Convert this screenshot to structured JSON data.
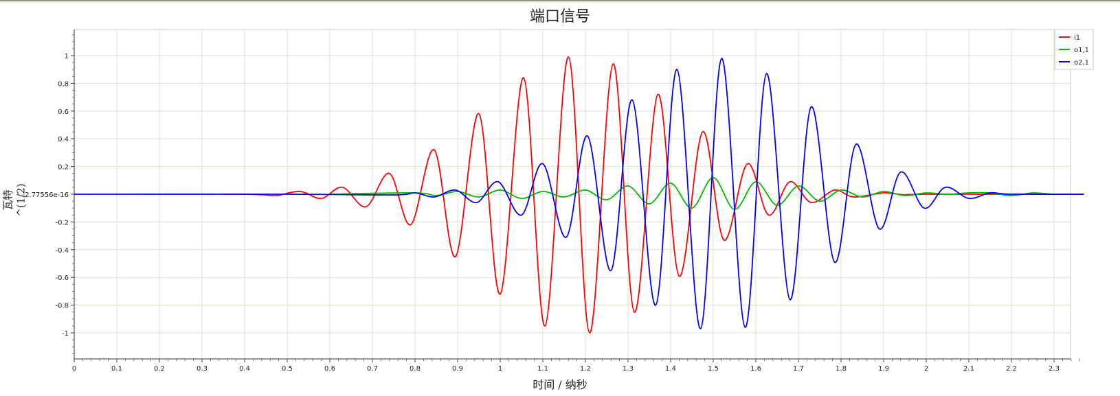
{
  "chart_data": {
    "type": "line",
    "title": "端口信号",
    "xlabel": "时间 / 纳秒",
    "ylabel": "瓦特^(1/2)",
    "xlim": [
      0,
      2.37
    ],
    "ylim": [
      -1.2,
      1.2
    ],
    "grid": true,
    "legend_position": "top-right",
    "x_ticks": [
      "0",
      "0.1",
      "0.2",
      "0.3",
      "0.4",
      "0.5",
      "0.6",
      "0.7",
      "0.8",
      "0.9",
      "1",
      "1.1",
      "1.2",
      "1.3",
      "1.4",
      "1.5",
      "1.6",
      "1.7",
      "1.8",
      "1.9",
      "2",
      "2.1",
      "2.2",
      "2.3"
    ],
    "y_ticks": [
      "1",
      "0.8",
      "0.6",
      "0.4",
      "0.2",
      "-2.77556e-16",
      "-0.2",
      "-0.4",
      "-0.6",
      "-0.8",
      "-1"
    ],
    "series": [
      {
        "name": "i1",
        "color": "#ff0000",
        "x": [
          0.35,
          0.4,
          0.45,
          0.475,
          0.53,
          0.58,
          0.63,
          0.685,
          0.74,
          0.79,
          0.845,
          0.895,
          0.95,
          1.0,
          1.055,
          1.105,
          1.16,
          1.21,
          1.265,
          1.315,
          1.37,
          1.42,
          1.475,
          1.525,
          1.58,
          1.63,
          1.68,
          1.73,
          1.785,
          1.83,
          1.9,
          1.95,
          2.0,
          2.37
        ],
        "values": [
          0,
          0,
          -0.005,
          -0.01,
          0.02,
          -0.03,
          0.05,
          -0.09,
          0.15,
          -0.22,
          0.32,
          -0.45,
          0.58,
          -0.72,
          0.84,
          -0.95,
          0.99,
          -1.0,
          0.94,
          -0.85,
          0.72,
          -0.59,
          0.45,
          -0.33,
          0.22,
          -0.15,
          0.09,
          -0.06,
          0.03,
          -0.02,
          0.01,
          -0.005,
          0,
          0
        ]
      },
      {
        "name": "o1,1",
        "color": "#00bb00",
        "x": [
          0.6,
          0.8,
          0.85,
          0.9,
          0.95,
          1.0,
          1.05,
          1.1,
          1.15,
          1.2,
          1.25,
          1.3,
          1.35,
          1.4,
          1.45,
          1.5,
          1.55,
          1.6,
          1.65,
          1.7,
          1.75,
          1.8,
          1.85,
          1.9,
          1.95,
          2.0,
          2.05,
          2.1,
          2.15,
          2.2,
          2.25,
          2.3,
          2.37
        ],
        "values": [
          0,
          0.01,
          -0.01,
          0.02,
          -0.02,
          0.03,
          -0.03,
          0.02,
          -0.02,
          0.03,
          -0.04,
          0.06,
          -0.07,
          0.08,
          -0.1,
          0.12,
          -0.11,
          0.09,
          -0.08,
          0.06,
          -0.05,
          0.03,
          -0.02,
          0.02,
          -0.01,
          0.01,
          0,
          0.01,
          0.01,
          -0.01,
          0.01,
          0,
          0
        ]
      },
      {
        "name": "o2,1",
        "color": "#0000ff",
        "x": [
          0,
          0.5,
          0.75,
          0.8,
          0.845,
          0.895,
          0.945,
          0.995,
          1.05,
          1.1,
          1.155,
          1.205,
          1.26,
          1.31,
          1.365,
          1.415,
          1.47,
          1.52,
          1.575,
          1.625,
          1.68,
          1.73,
          1.785,
          1.835,
          1.89,
          1.94,
          1.995,
          2.045,
          2.1,
          2.15,
          2.2,
          2.37
        ],
        "values": [
          0,
          0,
          -0.005,
          0.01,
          -0.02,
          0.03,
          -0.06,
          0.09,
          -0.15,
          0.22,
          -0.31,
          0.42,
          -0.55,
          0.68,
          -0.8,
          0.9,
          -0.97,
          0.98,
          -0.96,
          0.87,
          -0.76,
          0.63,
          -0.49,
          0.36,
          -0.25,
          0.16,
          -0.1,
          0.05,
          -0.03,
          0.01,
          0,
          0
        ]
      }
    ]
  }
}
